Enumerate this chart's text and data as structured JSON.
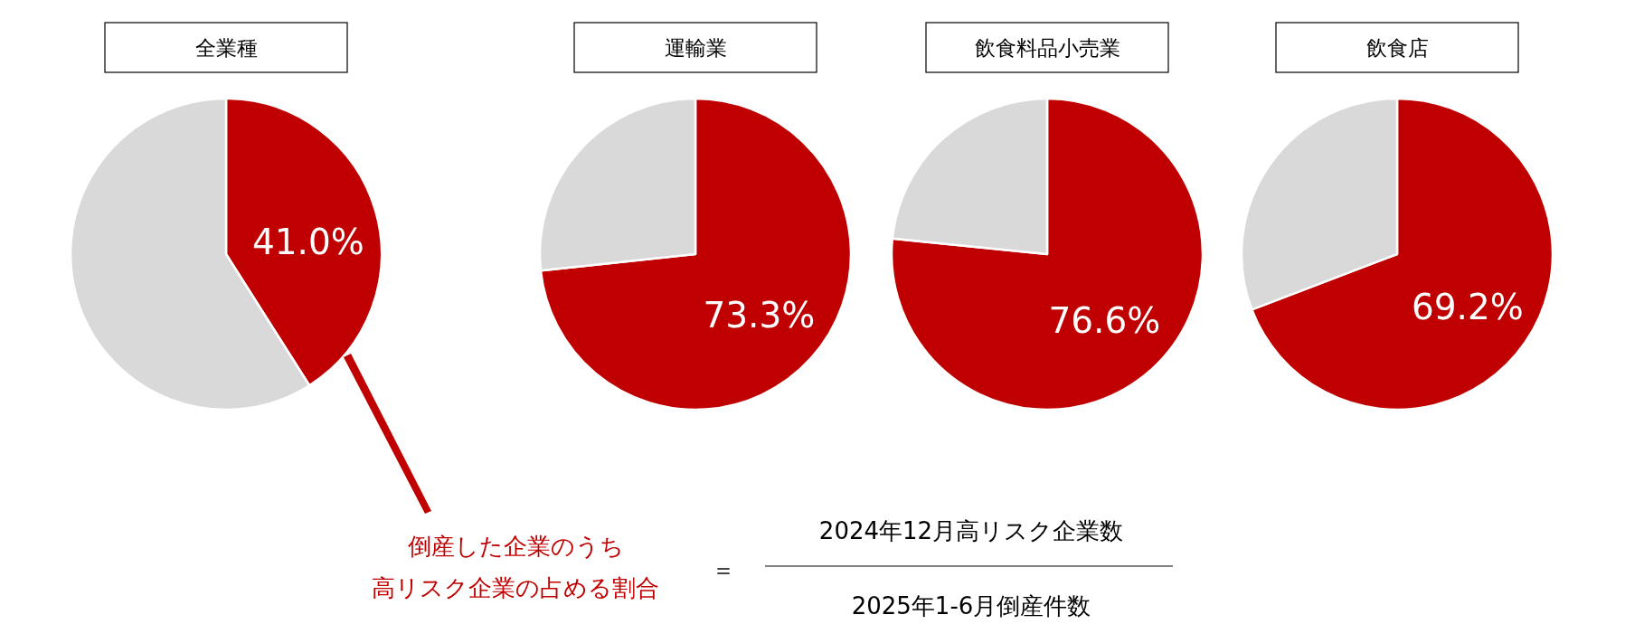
{
  "chart_data": [
    {
      "type": "pie",
      "title": "全業種",
      "categories": [
        null,
        null
      ],
      "values": [
        41.0,
        59.0
      ],
      "colors": [
        "#c00000",
        "#d9d9d9"
      ],
      "value_labels": [
        "41.0%",
        null
      ],
      "annotations": [
        "倒産した企業のうち",
        "高リスク企業の占める割合",
        "＝",
        "2024年12月高リスク企業数",
        "2025年1-6月倒産件数"
      ]
    },
    {
      "type": "pie",
      "title": "運輸業",
      "categories": [
        null,
        null
      ],
      "values": [
        73.3,
        26.7
      ],
      "colors": [
        "#c00000",
        "#d9d9d9"
      ],
      "value_labels": [
        "73.3%",
        null
      ]
    },
    {
      "type": "pie",
      "title": "飲食料品小売業",
      "categories": [
        null,
        null
      ],
      "values": [
        76.6,
        23.4
      ],
      "colors": [
        "#c00000",
        "#d9d9d9"
      ],
      "value_labels": [
        "76.6%",
        null
      ]
    },
    {
      "type": "pie",
      "title": "飲食店",
      "categories": [
        null,
        null
      ],
      "values": [
        69.2,
        30.8
      ],
      "colors": [
        "#c00000",
        "#d9d9d9"
      ],
      "value_labels": [
        "69.2%",
        null
      ]
    }
  ]
}
